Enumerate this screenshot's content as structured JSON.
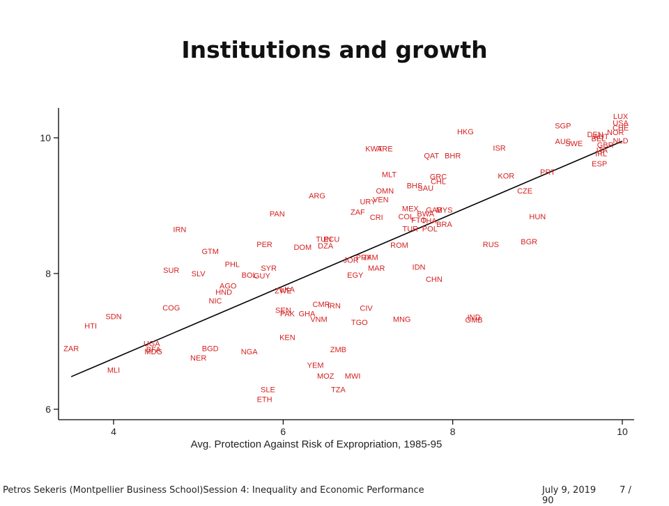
{
  "slide": {
    "title": "Institutions and growth"
  },
  "footer": {
    "author": "Petros Sekeris  (Montpellier Business School)",
    "session": "Session 4: Inequality and Economic Performance",
    "date": "July 9, 2019",
    "page": "7 / 90"
  },
  "chart_data": {
    "type": "scatter",
    "title": "",
    "xlabel": "Avg. Protection Against Risk of Expropriation, 1985-95",
    "ylabel": "",
    "xlim": [
      3.4,
      10.2
    ],
    "ylim": [
      5.85,
      10.45
    ],
    "x_ticks": [
      "4",
      "6",
      "8",
      "10"
    ],
    "y_ticks": [
      "6",
      "8",
      "10"
    ],
    "grid": false,
    "label_color": "#d42020",
    "fit_line": {
      "x": [
        3.5,
        10.0
      ],
      "y": [
        6.48,
        9.95
      ]
    },
    "points": [
      {
        "label": "ZAR",
        "x": 3.5,
        "y": 6.9
      },
      {
        "label": "HTI",
        "x": 3.73,
        "y": 7.23
      },
      {
        "label": "SDN",
        "x": 4.0,
        "y": 7.37
      },
      {
        "label": "MLI",
        "x": 4.0,
        "y": 6.58
      },
      {
        "label": "UGA",
        "x": 4.45,
        "y": 6.97
      },
      {
        "label": "BFA",
        "x": 4.47,
        "y": 6.88
      },
      {
        "label": "MDG",
        "x": 4.47,
        "y": 6.85
      },
      {
        "label": "COG",
        "x": 4.68,
        "y": 7.5
      },
      {
        "label": "SUR",
        "x": 4.68,
        "y": 8.05
      },
      {
        "label": "IRN",
        "x": 4.78,
        "y": 8.65
      },
      {
        "label": "SLV",
        "x": 5.0,
        "y": 8.0
      },
      {
        "label": "GTM",
        "x": 5.14,
        "y": 8.33
      },
      {
        "label": "BGD",
        "x": 5.14,
        "y": 6.9
      },
      {
        "label": "NER",
        "x": 5.0,
        "y": 6.76
      },
      {
        "label": "NIC",
        "x": 5.2,
        "y": 7.6
      },
      {
        "label": "HND",
        "x": 5.3,
        "y": 7.73
      },
      {
        "label": "AGO",
        "x": 5.35,
        "y": 7.82
      },
      {
        "label": "PHL",
        "x": 5.4,
        "y": 8.14
      },
      {
        "label": "BOL",
        "x": 5.6,
        "y": 7.98
      },
      {
        "label": "SYR",
        "x": 5.83,
        "y": 8.08
      },
      {
        "label": "GUY",
        "x": 5.75,
        "y": 7.97
      },
      {
        "label": "PAN",
        "x": 5.93,
        "y": 8.88
      },
      {
        "label": "PER",
        "x": 5.78,
        "y": 8.43
      },
      {
        "label": "NGA",
        "x": 5.6,
        "y": 6.85
      },
      {
        "label": "ZWE",
        "x": 6.0,
        "y": 7.75
      },
      {
        "label": "LKA",
        "x": 6.05,
        "y": 7.77
      },
      {
        "label": "SEN",
        "x": 6.0,
        "y": 7.46
      },
      {
        "label": "PAK",
        "x": 6.05,
        "y": 7.41
      },
      {
        "label": "GHA",
        "x": 6.28,
        "y": 7.41
      },
      {
        "label": "KEN",
        "x": 6.05,
        "y": 7.06
      },
      {
        "label": "SLE",
        "x": 5.82,
        "y": 6.29
      },
      {
        "label": "ETH",
        "x": 5.78,
        "y": 6.15
      },
      {
        "label": "DOM",
        "x": 6.23,
        "y": 8.39
      },
      {
        "label": "DZA",
        "x": 6.5,
        "y": 8.41
      },
      {
        "label": "TUN",
        "x": 6.48,
        "y": 8.51
      },
      {
        "label": "ECU",
        "x": 6.57,
        "y": 8.51
      },
      {
        "label": "ARG",
        "x": 6.4,
        "y": 9.15
      },
      {
        "label": "CMR",
        "x": 6.45,
        "y": 7.55
      },
      {
        "label": "IRN",
        "x": 6.6,
        "y": 7.53
      },
      {
        "label": "VNM",
        "x": 6.42,
        "y": 7.33
      },
      {
        "label": "CIV",
        "x": 6.98,
        "y": 7.49
      },
      {
        "label": "TGO",
        "x": 6.9,
        "y": 7.28
      },
      {
        "label": "ZMB",
        "x": 6.65,
        "y": 6.88
      },
      {
        "label": "YEM",
        "x": 6.38,
        "y": 6.65
      },
      {
        "label": "MOZ",
        "x": 6.5,
        "y": 6.49
      },
      {
        "label": "MWI",
        "x": 6.82,
        "y": 6.49
      },
      {
        "label": "TZA",
        "x": 6.65,
        "y": 6.29
      },
      {
        "label": "EGY",
        "x": 6.85,
        "y": 7.98
      },
      {
        "label": "JOR",
        "x": 6.8,
        "y": 8.2
      },
      {
        "label": "PRY",
        "x": 6.95,
        "y": 8.24
      },
      {
        "label": "JAM",
        "x": 7.03,
        "y": 8.24
      },
      {
        "label": "MAR",
        "x": 7.1,
        "y": 8.08
      },
      {
        "label": "ROM",
        "x": 7.37,
        "y": 8.42
      },
      {
        "label": "CRI",
        "x": 7.1,
        "y": 8.83
      },
      {
        "label": "ZAF",
        "x": 6.88,
        "y": 8.91
      },
      {
        "label": "URY",
        "x": 7.0,
        "y": 9.06
      },
      {
        "label": "VEN",
        "x": 7.15,
        "y": 9.09
      },
      {
        "label": "OMN",
        "x": 7.2,
        "y": 9.22
      },
      {
        "label": "MLT",
        "x": 7.25,
        "y": 9.46
      },
      {
        "label": "KWT",
        "x": 7.07,
        "y": 9.84
      },
      {
        "label": "ARE",
        "x": 7.2,
        "y": 9.84
      },
      {
        "label": "MNG",
        "x": 7.4,
        "y": 7.33
      },
      {
        "label": "IDN",
        "x": 7.6,
        "y": 8.1
      },
      {
        "label": "CHN",
        "x": 7.78,
        "y": 7.92
      },
      {
        "label": "TUR",
        "x": 7.5,
        "y": 8.66
      },
      {
        "label": "POL",
        "x": 7.73,
        "y": 8.66
      },
      {
        "label": "FTO",
        "x": 7.6,
        "y": 8.79
      },
      {
        "label": "THA",
        "x": 7.72,
        "y": 8.78
      },
      {
        "label": "COL",
        "x": 7.45,
        "y": 8.84
      },
      {
        "label": "BRA",
        "x": 7.9,
        "y": 8.73
      },
      {
        "label": "BWA",
        "x": 7.68,
        "y": 8.88
      },
      {
        "label": "MEX",
        "x": 7.5,
        "y": 8.96
      },
      {
        "label": "GAB",
        "x": 7.78,
        "y": 8.94
      },
      {
        "label": "MYS",
        "x": 7.9,
        "y": 8.94
      },
      {
        "label": "BHS",
        "x": 7.55,
        "y": 9.3
      },
      {
        "label": "SAU",
        "x": 7.68,
        "y": 9.26
      },
      {
        "label": "GRC",
        "x": 7.83,
        "y": 9.43
      },
      {
        "label": "CHL",
        "x": 7.83,
        "y": 9.36
      },
      {
        "label": "QAT",
        "x": 7.75,
        "y": 9.74
      },
      {
        "label": "BHR",
        "x": 8.0,
        "y": 9.74
      },
      {
        "label": "HKG",
        "x": 8.15,
        "y": 10.09
      },
      {
        "label": "ISR",
        "x": 8.55,
        "y": 9.85
      },
      {
        "label": "KOR",
        "x": 8.63,
        "y": 9.44
      },
      {
        "label": "CZE",
        "x": 8.85,
        "y": 9.22
      },
      {
        "label": "HUN",
        "x": 9.0,
        "y": 8.84
      },
      {
        "label": "BGR",
        "x": 8.9,
        "y": 8.47
      },
      {
        "label": "RUS",
        "x": 8.45,
        "y": 8.43
      },
      {
        "label": "IND",
        "x": 8.25,
        "y": 7.36
      },
      {
        "label": "GMB",
        "x": 8.25,
        "y": 7.32
      },
      {
        "label": "PRT",
        "x": 9.12,
        "y": 9.5
      },
      {
        "label": "SGP",
        "x": 9.3,
        "y": 10.18
      },
      {
        "label": "AUS",
        "x": 9.3,
        "y": 9.95
      },
      {
        "label": "SWE",
        "x": 9.43,
        "y": 9.92
      },
      {
        "label": "ESP",
        "x": 9.73,
        "y": 9.62
      },
      {
        "label": "DEN",
        "x": 9.68,
        "y": 10.05
      },
      {
        "label": "BEL",
        "x": 9.72,
        "y": 9.99
      },
      {
        "label": "AUT",
        "x": 9.75,
        "y": 10.02
      },
      {
        "label": "ITA",
        "x": 9.76,
        "y": 9.82
      },
      {
        "label": "IRL",
        "x": 9.75,
        "y": 9.77
      },
      {
        "label": "GBR",
        "x": 9.8,
        "y": 9.9
      },
      {
        "label": "NOR",
        "x": 9.92,
        "y": 10.08
      },
      {
        "label": "NLD",
        "x": 9.98,
        "y": 9.96
      },
      {
        "label": "LUX",
        "x": 9.98,
        "y": 10.32
      },
      {
        "label": "USA",
        "x": 9.98,
        "y": 10.22
      },
      {
        "label": "CHE",
        "x": 9.98,
        "y": 10.15
      }
    ]
  }
}
